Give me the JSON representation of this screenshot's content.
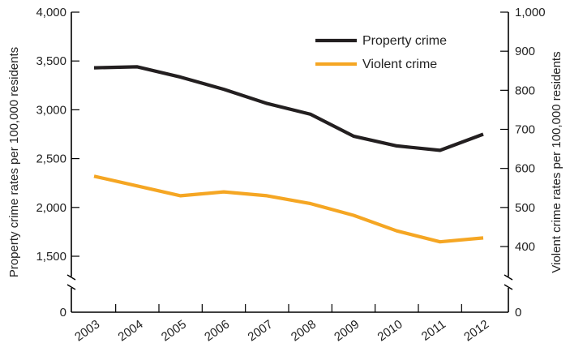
{
  "chart_data": {
    "type": "line",
    "x": [
      "2003",
      "2004",
      "2005",
      "2006",
      "2007",
      "2008",
      "2009",
      "2010",
      "2011",
      "2012"
    ],
    "series": [
      {
        "name": "Property crime",
        "axis": "left",
        "color": "#231f20",
        "values": [
          3430,
          3440,
          3335,
          3210,
          3065,
          2955,
          2730,
          2630,
          2585,
          2750
        ]
      },
      {
        "name": "Violent crime",
        "axis": "right",
        "color": "#f5a623",
        "values": [
          580,
          555,
          530,
          540,
          530,
          510,
          480,
          440,
          412,
          422
        ]
      }
    ],
    "left_axis": {
      "label": "Property crime rates per 100,000 residents",
      "ticks": [
        {
          "value": 0,
          "label": "0"
        },
        {
          "value": 1500,
          "label": "1,500"
        },
        {
          "value": 2000,
          "label": "2,000"
        },
        {
          "value": 2500,
          "label": "2,500"
        },
        {
          "value": 3000,
          "label": "3,000"
        },
        {
          "value": 3500,
          "label": "3,500"
        },
        {
          "value": 4000,
          "label": "4,000"
        }
      ],
      "range": [
        0,
        4000
      ],
      "broken_between": [
        0,
        1500
      ]
    },
    "right_axis": {
      "label": "Violent crime rates per 100,000 residents",
      "ticks": [
        {
          "value": 0,
          "label": "0"
        },
        {
          "value": 400,
          "label": "400"
        },
        {
          "value": 500,
          "label": "500"
        },
        {
          "value": 600,
          "label": "600"
        },
        {
          "value": 700,
          "label": "700"
        },
        {
          "value": 800,
          "label": "800"
        },
        {
          "value": 900,
          "label": "900"
        },
        {
          "value": 1000,
          "label": "1,000"
        }
      ],
      "range": [
        0,
        1000
      ],
      "broken_between": [
        0,
        400
      ]
    },
    "legend_position": "top-right",
    "grid": false
  }
}
